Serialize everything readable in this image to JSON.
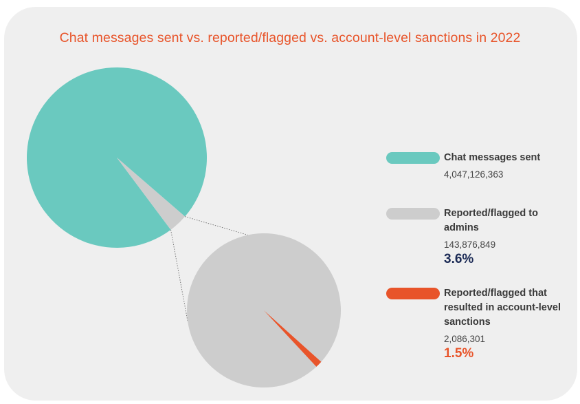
{
  "title": "Chat messages sent vs. reported/flagged vs. account-level sanctions in 2022",
  "colors": {
    "background": "#efefef",
    "title": "#e8542a",
    "chat_sent": "#6ac9bf",
    "reported": "#cdcdcd",
    "sanctions": "#e8542a",
    "pct_reported": "#1b2a55",
    "pct_sanctions": "#e8542a"
  },
  "legend": [
    {
      "label": "Chat messages sent",
      "value": "4,047,126,363",
      "pct": ""
    },
    {
      "label": "Reported/flagged to admins",
      "value": "143,876,849",
      "pct": "3.6%"
    },
    {
      "label": "Reported/flagged that resulted in account-level sanctions",
      "value": "2,086,301",
      "pct": "1.5%"
    }
  ],
  "chart_data": {
    "type": "pie",
    "title": "Chat messages sent vs. reported/flagged vs. account-level sanctions in 2022",
    "main_pie": {
      "slices": [
        {
          "name": "Chat messages sent",
          "value": 4047126363
        },
        {
          "name": "Reported/flagged to admins",
          "value": 143876849,
          "percent": 3.6
        }
      ]
    },
    "detail_pie": {
      "slices": [
        {
          "name": "Reported/flagged to admins",
          "value": 143876849
        },
        {
          "name": "Reported/flagged that resulted in account-level sanctions",
          "value": 2086301,
          "percent": 1.5
        }
      ]
    },
    "legend_position": "right"
  }
}
